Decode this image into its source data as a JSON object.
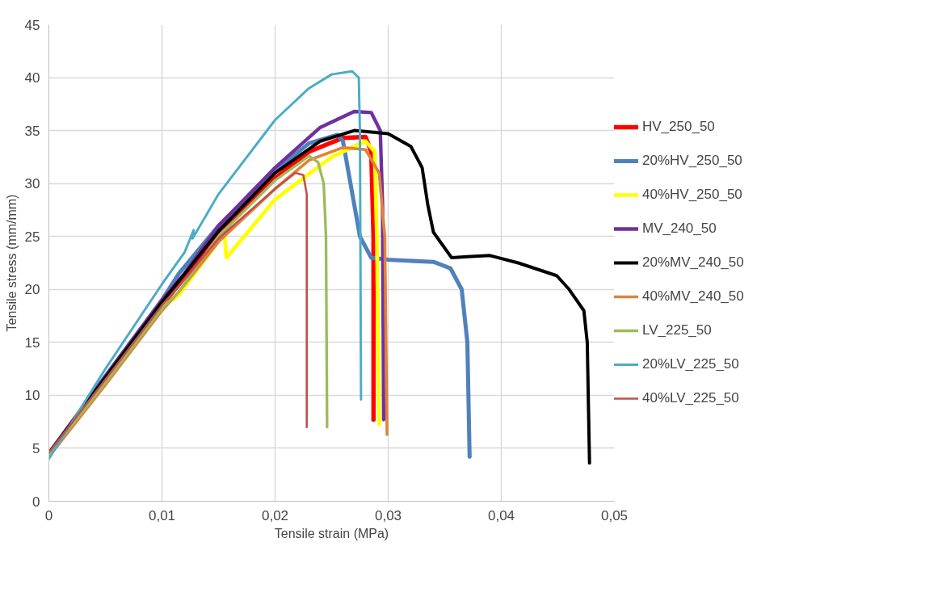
{
  "chart_data": {
    "type": "line",
    "xlabel": "Tensile strain (MPa)",
    "ylabel": "Tensile stress (mm/mm)",
    "xlim": [
      0,
      0.05
    ],
    "ylim": [
      0,
      45
    ],
    "xticks": [
      0,
      {
        "value": 0.01,
        "label": "0,01"
      },
      {
        "value": 0.02,
        "label": "0,02"
      },
      {
        "value": 0.03,
        "label": "0,03"
      },
      {
        "value": 0.04,
        "label": "0,04"
      },
      {
        "value": 0.05,
        "label": "0,05"
      }
    ],
    "yticks": [
      0,
      5,
      10,
      15,
      20,
      25,
      30,
      35,
      40,
      45
    ],
    "grid": true,
    "legend": "right",
    "marker": "none",
    "line_style": "solid",
    "series": [
      {
        "name": "HV_250_50",
        "color": "#ff0000",
        "x": [
          0,
          0.005,
          0.01,
          0.0115,
          0.015,
          0.02,
          0.023,
          0.026,
          0.028,
          0.0285,
          0.0287,
          0.0287
        ],
        "values": [
          4.5,
          11.5,
          18.5,
          20.5,
          25.5,
          30.5,
          33,
          34.3,
          34.4,
          33,
          25,
          7.7
        ]
      },
      {
        "name": "20%HV_250_50",
        "color": "#4f81bd",
        "x": [
          0,
          0.005,
          0.01,
          0.0115,
          0.015,
          0.02,
          0.023,
          0.0255,
          0.026,
          0.027,
          0.0275,
          0.0285,
          0.03,
          0.034,
          0.0355,
          0.0365,
          0.037,
          0.0372
        ],
        "values": [
          4.5,
          11.8,
          19,
          21.5,
          26,
          31.2,
          33.8,
          34.6,
          34,
          28,
          25,
          23,
          22.8,
          22.6,
          22,
          20,
          15,
          4.2
        ]
      },
      {
        "name": "40%HV_250_50",
        "color": "#ffff00",
        "x": [
          0,
          0.005,
          0.01,
          0.0115,
          0.0155,
          0.0157,
          0.02,
          0.025,
          0.028,
          0.0288,
          0.029,
          0.0292
        ],
        "values": [
          4.3,
          11.2,
          18.3,
          19.5,
          25.3,
          23,
          28.5,
          32.5,
          34,
          33,
          25,
          7.3
        ]
      },
      {
        "name": "MV_240_50",
        "color": "#7030a0",
        "x": [
          0,
          0.005,
          0.01,
          0.012,
          0.015,
          0.02,
          0.024,
          0.027,
          0.0285,
          0.0293,
          0.0295,
          0.0296
        ],
        "values": [
          4.5,
          11.8,
          19,
          21.5,
          26,
          31.5,
          35.3,
          36.8,
          36.7,
          35,
          28,
          7.7
        ]
      },
      {
        "name": "20%MV_240_50",
        "color": "#000000",
        "x": [
          0,
          0.005,
          0.01,
          0.015,
          0.02,
          0.024,
          0.027,
          0.03,
          0.032,
          0.033,
          0.0335,
          0.034,
          0.0356,
          0.037,
          0.039,
          0.0415,
          0.0449,
          0.046,
          0.0473,
          0.0476,
          0.0478
        ],
        "values": [
          4.5,
          11.7,
          18.8,
          25.5,
          31,
          34,
          35,
          34.7,
          33.5,
          31.5,
          28,
          25.4,
          23,
          23.1,
          23.2,
          22.5,
          21.3,
          20,
          18,
          15,
          3.6
        ]
      },
      {
        "name": "40%MV_240_50",
        "color": "#e0823a",
        "x": [
          0,
          0.005,
          0.01,
          0.0115,
          0.015,
          0.02,
          0.023,
          0.026,
          0.028,
          0.0292,
          0.0297,
          0.0299
        ],
        "values": [
          4.2,
          11,
          18,
          19.8,
          24.5,
          29.5,
          32.2,
          33.4,
          33.2,
          31,
          25,
          6.3
        ]
      },
      {
        "name": "LV_225_50",
        "color": "#9bbb59",
        "x": [
          0,
          0.005,
          0.01,
          0.0115,
          0.015,
          0.02,
          0.023,
          0.0238,
          0.0243,
          0.0245,
          0.0246
        ],
        "values": [
          4.4,
          11.2,
          18.2,
          19.8,
          25,
          30.3,
          32.6,
          32,
          30,
          25,
          7
        ]
      },
      {
        "name": "20%LV_225_50",
        "color": "#4bacc6",
        "x": [
          0,
          0.005,
          0.01,
          0.012,
          0.0128,
          0.0127,
          0.015,
          0.02,
          0.023,
          0.025,
          0.0268,
          0.0274,
          0.0275,
          0.0276
        ],
        "values": [
          4,
          12.5,
          20.5,
          23.5,
          25.6,
          24.8,
          29,
          36,
          39,
          40.3,
          40.6,
          40,
          35,
          9.6
        ]
      },
      {
        "name": "40%LV_225_50",
        "color": "#c0504d",
        "x": [
          0,
          0.005,
          0.01,
          0.0115,
          0.015,
          0.02,
          0.0218,
          0.0225,
          0.0228,
          0.0228
        ],
        "values": [
          4.6,
          11.5,
          18.5,
          20.3,
          24.8,
          29.5,
          31,
          30.8,
          29,
          7
        ]
      }
    ]
  }
}
